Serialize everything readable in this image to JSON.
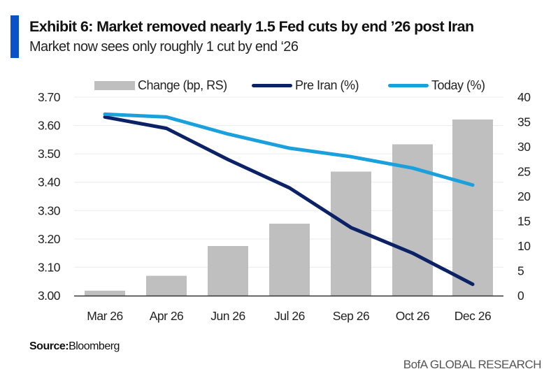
{
  "header": {
    "title": "Exhibit 6: Market removed nearly 1.5 Fed cuts by end ’26 post Iran",
    "subtitle": "Market now sees only roughly 1 cut by end ‘26",
    "accent_color": "#0a52c8"
  },
  "footer": {
    "source_label": "Source:",
    "source_value": "Bloomberg",
    "brand": "BofA GLOBAL RESEARCH"
  },
  "chart_data": {
    "type": "bar",
    "combo": "bar + line, dual axis",
    "title": "Exhibit 6: Market removed nearly 1.5 Fed cuts by end ’26 post Iran",
    "subtitle": "Market now sees only roughly 1 cut by end ‘26",
    "categories": [
      "Mar 26",
      "Apr 26",
      "Jun 26",
      "Jul 26",
      "Sep 26",
      "Oct 26",
      "Dec 26"
    ],
    "series": [
      {
        "name": "Change (bp, RS)",
        "type": "bar",
        "axis": "right",
        "color": "#bfbfbf",
        "values": [
          1,
          4,
          10,
          14.5,
          25,
          30.5,
          35.5
        ]
      },
      {
        "name": "Pre Iran (%)",
        "type": "line",
        "axis": "left",
        "color": "#0c2266",
        "values": [
          3.63,
          3.59,
          3.48,
          3.38,
          3.24,
          3.15,
          3.04
        ]
      },
      {
        "name": "Today (%)",
        "type": "line",
        "axis": "left",
        "color": "#1aa0dc",
        "values": [
          3.64,
          3.63,
          3.57,
          3.52,
          3.49,
          3.45,
          3.39
        ]
      }
    ],
    "left_axis": {
      "ylim": [
        3.0,
        3.7
      ],
      "ticks": [
        "3.00",
        "3.10",
        "3.20",
        "3.30",
        "3.40",
        "3.50",
        "3.60",
        "3.70"
      ]
    },
    "right_axis": {
      "ylim": [
        0,
        40
      ],
      "ticks": [
        "0",
        "5",
        "10",
        "15",
        "20",
        "25",
        "30",
        "35",
        "40"
      ]
    },
    "xlabel": "",
    "ylabel": "",
    "grid": true,
    "legend": "top"
  }
}
